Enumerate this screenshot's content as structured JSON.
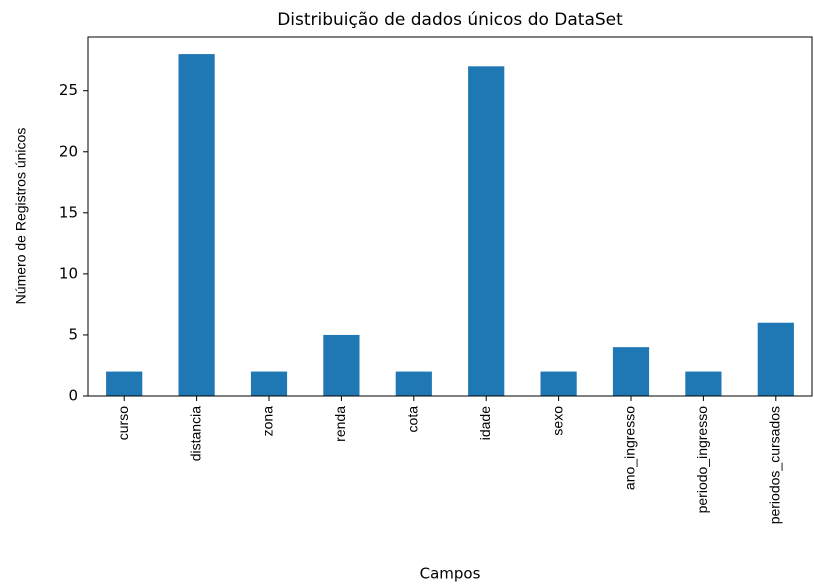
{
  "chart_data": {
    "type": "bar",
    "title": "Distribuição de dados únicos do DataSet",
    "x_label": "Campos",
    "y_label": "Número de Registros únicos",
    "categories": [
      "curso",
      "distancia",
      "zona",
      "renda",
      "cota",
      "idade",
      "sexo",
      "ano_ingresso",
      "periodo_ingresso",
      "periodos_cursados"
    ],
    "values": [
      2,
      28,
      2,
      5,
      2,
      27,
      2,
      4,
      2,
      6
    ],
    "color": "#1f77b4",
    "ylim": [
      0,
      29.4
    ],
    "yticks": [
      0,
      5,
      10,
      15,
      20,
      25
    ],
    "grid": false
  }
}
